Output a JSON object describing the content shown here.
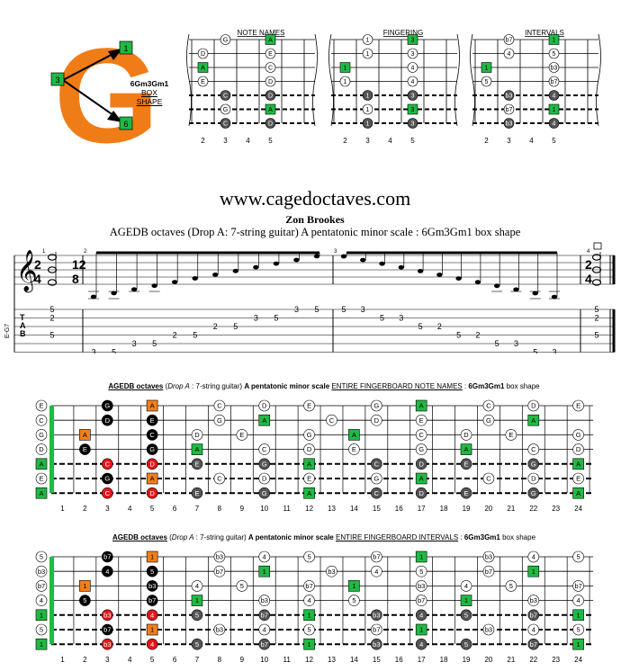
{
  "colors": {
    "green": "#1fb944",
    "orange": "#f07f1d",
    "red": "#e8141b",
    "dark": "#555555",
    "black": "#000000",
    "white": "#ffffff",
    "logo_orange": "#f07c17"
  },
  "logo": {
    "letter": "G",
    "marker_top": "1",
    "marker_left": "3",
    "marker_bottom": "6",
    "shape_name": "6Gm3Gm1",
    "shape_word1": "BOX",
    "shape_word2": "SHAPE"
  },
  "charts": {
    "fret_numbers": [
      "2",
      "3",
      "4",
      "5"
    ],
    "panels": [
      {
        "title": "NOTE NAMES",
        "cells": [
          [
            1,
            "G",
            "w"
          ],
          [
            3,
            "A",
            "g"
          ],
          [
            0,
            "D",
            "w"
          ],
          [
            3,
            "E",
            "w"
          ],
          [
            0,
            "A",
            "g"
          ],
          [
            3,
            "C",
            "w"
          ],
          [
            0,
            "E",
            "w"
          ],
          [
            3,
            "D",
            "w"
          ],
          [
            1,
            "C",
            "d"
          ],
          [
            3,
            "D",
            "d"
          ],
          [
            1,
            "G",
            "w"
          ],
          [
            3,
            "A",
            "g"
          ],
          [
            1,
            "C",
            "d"
          ],
          [
            3,
            "D",
            "d"
          ]
        ]
      },
      {
        "title": "FINGERING",
        "cells": [
          [
            1,
            "1",
            "w"
          ],
          [
            3,
            "3",
            "g"
          ],
          [
            1,
            "1",
            "w"
          ],
          [
            3,
            "3",
            "w"
          ],
          [
            0,
            "1",
            "g"
          ],
          [
            3,
            "4",
            "w"
          ],
          [
            0,
            "1",
            "w"
          ],
          [
            3,
            "4",
            "w"
          ],
          [
            1,
            "1",
            "d"
          ],
          [
            3,
            "3",
            "d"
          ],
          [
            1,
            "1",
            "w"
          ],
          [
            3,
            "3",
            "g"
          ],
          [
            1,
            "1",
            "d"
          ],
          [
            3,
            "3",
            "d"
          ]
        ]
      },
      {
        "title": "INTERVALS",
        "cells": [
          [
            1,
            "b7",
            "w"
          ],
          [
            3,
            "1",
            "g"
          ],
          [
            1,
            "4",
            "w"
          ],
          [
            3,
            "5",
            "w"
          ],
          [
            0,
            "1",
            "g"
          ],
          [
            3,
            "b3",
            "w"
          ],
          [
            0,
            "5",
            "w"
          ],
          [
            3,
            "b7",
            "w"
          ],
          [
            1,
            "b3",
            "d"
          ],
          [
            3,
            "4",
            "d"
          ],
          [
            1,
            "b7",
            "w"
          ],
          [
            3,
            "1",
            "g"
          ],
          [
            1,
            "b3",
            "d"
          ],
          [
            3,
            "4",
            "d"
          ]
        ]
      }
    ]
  },
  "header": {
    "site": "www.cagedoctaves.com",
    "author": "Zon Brookes",
    "subtitle": "AGEDB octaves (Drop A: 7-string guitar) A pentatonic minor scale : 6Gm3Gm1 box shape"
  },
  "score": {
    "tuning_label": "E-G7",
    "tab_letters": [
      "T",
      "A",
      "B"
    ],
    "measure_numbers": [
      "1",
      "2",
      "3",
      "4"
    ],
    "time_a": [
      "2",
      "4"
    ],
    "time_b": [
      "12",
      "8"
    ],
    "chord1": [
      [
        "5",
        0
      ],
      [
        "2",
        1
      ],
      [
        "5",
        3
      ]
    ],
    "run_up": [
      [
        "3",
        5
      ],
      [
        "5",
        5
      ],
      [
        "3",
        4
      ],
      [
        "5",
        4
      ],
      [
        "2",
        3
      ],
      [
        "5",
        3
      ],
      [
        "2",
        2
      ],
      [
        "5",
        2
      ],
      [
        "3",
        1
      ],
      [
        "5",
        1
      ],
      [
        "3",
        0
      ],
      [
        "5",
        0
      ]
    ],
    "run_down": [
      [
        "5",
        0
      ],
      [
        "3",
        0
      ],
      [
        "5",
        1
      ],
      [
        "3",
        1
      ],
      [
        "5",
        2
      ],
      [
        "2",
        2
      ],
      [
        "5",
        3
      ],
      [
        "2",
        3
      ],
      [
        "5",
        4
      ],
      [
        "3",
        4
      ],
      [
        "5",
        5
      ],
      [
        "3",
        5
      ]
    ],
    "chord2": [
      [
        "5",
        0
      ],
      [
        "2",
        1
      ],
      [
        "5",
        3
      ]
    ]
  },
  "fretboards": {
    "fret_numbers": [
      "1",
      "2",
      "3",
      "4",
      "5",
      "6",
      "7",
      "8",
      "9",
      "10",
      "11",
      "12",
      "13",
      "14",
      "15",
      "16",
      "17",
      "18",
      "19",
      "20",
      "21",
      "22",
      "23",
      "24"
    ],
    "note_names": {
      "title_bold": "AGEDB octaves",
      "title_italic": "Drop A",
      "title_rest": ": 7-string guitar)",
      "title_scale": "A pentatonic minor scale",
      "title_entire": "ENTIRE FINGERBOARD NOTE NAMES",
      "title_shape": "6Gm3Gm1",
      "title_end": "box shape",
      "open": [
        "E",
        "C",
        "G",
        "D",
        "A",
        "E",
        "A"
      ],
      "notes": [
        [
          0,
          3,
          "G",
          "k"
        ],
        [
          0,
          5,
          "A",
          "o"
        ],
        [
          0,
          8,
          "C",
          "w"
        ],
        [
          0,
          10,
          "D",
          "w"
        ],
        [
          0,
          12,
          "E",
          "w"
        ],
        [
          0,
          15,
          "G",
          "w"
        ],
        [
          0,
          17,
          "A",
          "g"
        ],
        [
          0,
          20,
          "C",
          "w"
        ],
        [
          0,
          22,
          "D",
          "w"
        ],
        [
          0,
          24,
          "E",
          "w"
        ],
        [
          1,
          3,
          "D",
          "k"
        ],
        [
          1,
          5,
          "E",
          "k"
        ],
        [
          1,
          8,
          "G",
          "w"
        ],
        [
          1,
          10,
          "A",
          "g"
        ],
        [
          1,
          13,
          "C",
          "w"
        ],
        [
          1,
          15,
          "D",
          "w"
        ],
        [
          1,
          17,
          "E",
          "w"
        ],
        [
          1,
          20,
          "G",
          "w"
        ],
        [
          1,
          22,
          "A",
          "g"
        ],
        [
          2,
          2,
          "A",
          "o"
        ],
        [
          2,
          5,
          "C",
          "k"
        ],
        [
          2,
          7,
          "D",
          "w"
        ],
        [
          2,
          9,
          "E",
          "w"
        ],
        [
          2,
          12,
          "G",
          "w"
        ],
        [
          2,
          14,
          "A",
          "g"
        ],
        [
          2,
          17,
          "C",
          "w"
        ],
        [
          2,
          19,
          "D",
          "w"
        ],
        [
          2,
          21,
          "E",
          "w"
        ],
        [
          2,
          24,
          "G",
          "w"
        ],
        [
          3,
          2,
          "E",
          "k"
        ],
        [
          3,
          5,
          "G",
          "k"
        ],
        [
          3,
          7,
          "A",
          "g"
        ],
        [
          3,
          10,
          "C",
          "w"
        ],
        [
          3,
          12,
          "D",
          "w"
        ],
        [
          3,
          14,
          "E",
          "w"
        ],
        [
          3,
          17,
          "G",
          "w"
        ],
        [
          3,
          19,
          "A",
          "g"
        ],
        [
          3,
          22,
          "C",
          "w"
        ],
        [
          3,
          24,
          "D",
          "w"
        ],
        [
          4,
          3,
          "C",
          "r"
        ],
        [
          4,
          5,
          "D",
          "r"
        ],
        [
          4,
          7,
          "E",
          "d"
        ],
        [
          4,
          10,
          "G",
          "d"
        ],
        [
          4,
          12,
          "A",
          "g"
        ],
        [
          4,
          15,
          "C",
          "d"
        ],
        [
          4,
          17,
          "D",
          "d"
        ],
        [
          4,
          19,
          "E",
          "d"
        ],
        [
          4,
          22,
          "G",
          "d"
        ],
        [
          4,
          24,
          "A",
          "g"
        ],
        [
          5,
          3,
          "G",
          "k"
        ],
        [
          5,
          5,
          "A",
          "o"
        ],
        [
          5,
          8,
          "C",
          "w"
        ],
        [
          5,
          10,
          "D",
          "w"
        ],
        [
          5,
          12,
          "E",
          "w"
        ],
        [
          5,
          15,
          "G",
          "w"
        ],
        [
          5,
          17,
          "A",
          "g"
        ],
        [
          5,
          20,
          "C",
          "w"
        ],
        [
          5,
          22,
          "D",
          "w"
        ],
        [
          5,
          24,
          "E",
          "w"
        ],
        [
          6,
          3,
          "C",
          "r"
        ],
        [
          6,
          5,
          "D",
          "r"
        ],
        [
          6,
          7,
          "E",
          "d"
        ],
        [
          6,
          10,
          "G",
          "d"
        ],
        [
          6,
          12,
          "A",
          "g"
        ],
        [
          6,
          15,
          "C",
          "d"
        ],
        [
          6,
          17,
          "D",
          "d"
        ],
        [
          6,
          19,
          "E",
          "d"
        ],
        [
          6,
          22,
          "G",
          "d"
        ],
        [
          6,
          24,
          "A",
          "g"
        ]
      ]
    },
    "intervals": {
      "title_bold": "AGEDB octaves",
      "title_italic": "Drop A",
      "title_rest": ": 7-string guitar)",
      "title_scale": "A pentatonic minor scale",
      "title_entire": "ENTIRE FINGERBOARD INTERVALS",
      "title_shape": "6Gm3Gm1",
      "title_end": "box shape",
      "open": [
        "5",
        "b3",
        "b7",
        "4",
        "1",
        "5",
        "1"
      ],
      "notes": [
        [
          0,
          3,
          "b7",
          "k"
        ],
        [
          0,
          5,
          "1",
          "o"
        ],
        [
          0,
          8,
          "b3",
          "w"
        ],
        [
          0,
          10,
          "4",
          "w"
        ],
        [
          0,
          12,
          "5",
          "w"
        ],
        [
          0,
          15,
          "b7",
          "w"
        ],
        [
          0,
          17,
          "1",
          "g"
        ],
        [
          0,
          20,
          "b3",
          "w"
        ],
        [
          0,
          22,
          "4",
          "w"
        ],
        [
          0,
          24,
          "5",
          "w"
        ],
        [
          1,
          3,
          "4",
          "k"
        ],
        [
          1,
          5,
          "5",
          "k"
        ],
        [
          1,
          8,
          "b7",
          "w"
        ],
        [
          1,
          10,
          "1",
          "g"
        ],
        [
          1,
          13,
          "b3",
          "w"
        ],
        [
          1,
          15,
          "4",
          "w"
        ],
        [
          1,
          17,
          "5",
          "w"
        ],
        [
          1,
          20,
          "b7",
          "w"
        ],
        [
          1,
          22,
          "1",
          "g"
        ],
        [
          2,
          2,
          "1",
          "o"
        ],
        [
          2,
          5,
          "b3",
          "k"
        ],
        [
          2,
          7,
          "4",
          "w"
        ],
        [
          2,
          9,
          "5",
          "w"
        ],
        [
          2,
          12,
          "b7",
          "w"
        ],
        [
          2,
          14,
          "1",
          "g"
        ],
        [
          2,
          17,
          "b3",
          "w"
        ],
        [
          2,
          19,
          "4",
          "w"
        ],
        [
          2,
          21,
          "5",
          "w"
        ],
        [
          2,
          24,
          "b7",
          "w"
        ],
        [
          3,
          2,
          "5",
          "k"
        ],
        [
          3,
          5,
          "b7",
          "k"
        ],
        [
          3,
          7,
          "1",
          "g"
        ],
        [
          3,
          10,
          "b3",
          "w"
        ],
        [
          3,
          12,
          "4",
          "w"
        ],
        [
          3,
          14,
          "5",
          "w"
        ],
        [
          3,
          17,
          "b7",
          "w"
        ],
        [
          3,
          19,
          "1",
          "g"
        ],
        [
          3,
          22,
          "b3",
          "w"
        ],
        [
          3,
          24,
          "4",
          "w"
        ],
        [
          4,
          3,
          "b3",
          "r"
        ],
        [
          4,
          5,
          "4",
          "r"
        ],
        [
          4,
          7,
          "5",
          "d"
        ],
        [
          4,
          10,
          "b7",
          "d"
        ],
        [
          4,
          12,
          "1",
          "g"
        ],
        [
          4,
          15,
          "b3",
          "d"
        ],
        [
          4,
          17,
          "4",
          "d"
        ],
        [
          4,
          19,
          "5",
          "d"
        ],
        [
          4,
          22,
          "b7",
          "d"
        ],
        [
          4,
          24,
          "1",
          "g"
        ],
        [
          5,
          3,
          "b7",
          "k"
        ],
        [
          5,
          5,
          "1",
          "o"
        ],
        [
          5,
          8,
          "b3",
          "w"
        ],
        [
          5,
          10,
          "4",
          "w"
        ],
        [
          5,
          12,
          "5",
          "w"
        ],
        [
          5,
          15,
          "b7",
          "w"
        ],
        [
          5,
          17,
          "1",
          "g"
        ],
        [
          5,
          20,
          "b3",
          "w"
        ],
        [
          5,
          22,
          "4",
          "w"
        ],
        [
          5,
          24,
          "5",
          "w"
        ],
        [
          6,
          3,
          "b3",
          "r"
        ],
        [
          6,
          5,
          "4",
          "r"
        ],
        [
          6,
          7,
          "5",
          "d"
        ],
        [
          6,
          10,
          "b7",
          "d"
        ],
        [
          6,
          12,
          "1",
          "g"
        ],
        [
          6,
          15,
          "b3",
          "d"
        ],
        [
          6,
          17,
          "4",
          "d"
        ],
        [
          6,
          19,
          "5",
          "d"
        ],
        [
          6,
          22,
          "b7",
          "d"
        ],
        [
          6,
          24,
          "1",
          "g"
        ]
      ]
    }
  }
}
